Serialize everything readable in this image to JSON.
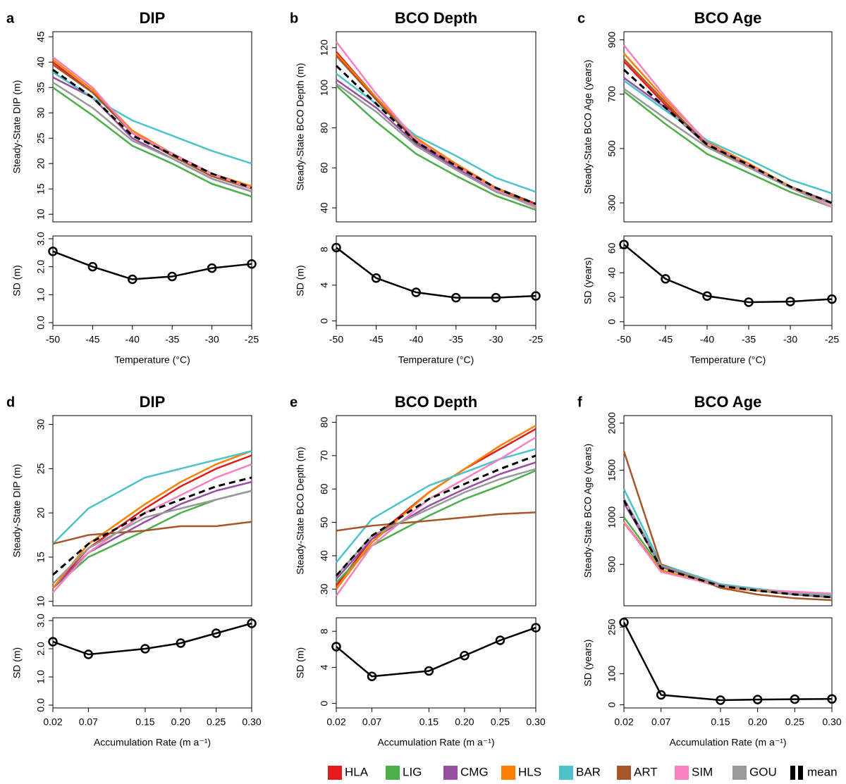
{
  "chart_data": [
    {
      "type": "line",
      "panel": "a",
      "title": "DIP",
      "y_label": "Steady-State DIP (m)",
      "x": [
        -50,
        -45,
        -40,
        -35,
        -30,
        -25
      ],
      "xlim": [
        -50,
        -25
      ],
      "ylim": [
        8.5,
        46
      ],
      "yticks": [
        10,
        15,
        20,
        25,
        30,
        35,
        40,
        45
      ],
      "series": [
        {
          "name": "HLA",
          "color": "#e41a1c",
          "values": [
            40,
            34,
            26,
            22,
            18,
            15.5
          ]
        },
        {
          "name": "LIG",
          "color": "#4daf4a",
          "values": [
            35,
            29.5,
            23.5,
            20,
            16,
            13.5
          ]
        },
        {
          "name": "CMG",
          "color": "#984ea3",
          "values": [
            37,
            33,
            25,
            21,
            17,
            14.5
          ]
        },
        {
          "name": "HLS",
          "color": "#ff7f00",
          "values": [
            40.5,
            34.5,
            26.5,
            22,
            18,
            15.5
          ]
        },
        {
          "name": "BAR",
          "color": "#4cc3c9",
          "values": [
            38,
            33,
            28.5,
            25.5,
            22.5,
            20
          ]
        },
        {
          "name": "ART",
          "color": "#a65628",
          "values": [
            39.5,
            34,
            26,
            21.5,
            17.5,
            15
          ]
        },
        {
          "name": "SIM",
          "color": "#f781bf",
          "values": [
            41,
            35,
            26,
            22,
            18,
            15
          ]
        },
        {
          "name": "GOU",
          "color": "#999999",
          "values": [
            36,
            31,
            24.5,
            21,
            17,
            14.5
          ]
        },
        {
          "name": "mean",
          "color": "#000000",
          "dashed": true,
          "values": [
            38.5,
            33,
            25.5,
            21.8,
            18,
            15.2
          ]
        }
      ]
    },
    {
      "type": "line",
      "y_label": "SD (m)",
      "x_label": "Temperature (°C)",
      "markers": true,
      "x": [
        -50,
        -45,
        -40,
        -35,
        -30,
        -25
      ],
      "xlim": [
        -50,
        -25
      ],
      "xticks": [
        -50,
        -45,
        -40,
        -35,
        -30,
        -25
      ],
      "ylim": [
        -0.1,
        3.1
      ],
      "yticks": [
        {
          "value": 0,
          "label": "0.0"
        },
        {
          "value": 1,
          "label": "1.0"
        },
        {
          "value": 2,
          "label": "2.0"
        },
        {
          "value": 3,
          "label": "3.0"
        }
      ],
      "series": [
        {
          "color": "#000000",
          "values": [
            2.55,
            2.0,
            1.55,
            1.65,
            1.95,
            2.1
          ]
        }
      ]
    },
    {
      "type": "line",
      "panel": "b",
      "title": "BCO Depth",
      "y_label": "Steady-State BCO Depth (m)",
      "x": [
        -50,
        -45,
        -40,
        -35,
        -30,
        -25
      ],
      "xlim": [
        -50,
        -25
      ],
      "ylim": [
        33,
        128
      ],
      "yticks": [
        40,
        60,
        80,
        100,
        120
      ],
      "series": [
        {
          "name": "HLA",
          "color": "#e41a1c",
          "values": [
            118,
            95,
            74,
            62,
            50,
            42
          ]
        },
        {
          "name": "LIG",
          "color": "#4daf4a",
          "values": [
            101,
            83,
            67,
            56,
            46,
            39
          ]
        },
        {
          "name": "CMG",
          "color": "#984ea3",
          "values": [
            104,
            90,
            72,
            60,
            49,
            41
          ]
        },
        {
          "name": "HLS",
          "color": "#ff7f00",
          "values": [
            117,
            95,
            75,
            62,
            50,
            41
          ]
        },
        {
          "name": "BAR",
          "color": "#4cc3c9",
          "values": [
            107,
            92,
            76,
            66,
            55,
            48
          ]
        },
        {
          "name": "ART",
          "color": "#a65628",
          "values": [
            116,
            94,
            73,
            61,
            49,
            41
          ]
        },
        {
          "name": "SIM",
          "color": "#f781bf",
          "values": [
            123,
            97,
            74,
            61,
            49,
            40
          ]
        },
        {
          "name": "GOU",
          "color": "#999999",
          "values": [
            102,
            88,
            71,
            59,
            48,
            41
          ]
        },
        {
          "name": "mean",
          "color": "#000000",
          "dashed": true,
          "values": [
            111,
            92,
            73,
            61,
            50,
            42
          ]
        }
      ]
    },
    {
      "type": "line",
      "y_label": "SD (m)",
      "x_label": "Temperature (°C)",
      "markers": true,
      "x": [
        -50,
        -45,
        -40,
        -35,
        -30,
        -25
      ],
      "xlim": [
        -50,
        -25
      ],
      "xticks": [
        -50,
        -45,
        -40,
        -35,
        -30,
        -25
      ],
      "ylim": [
        -0.5,
        9.5
      ],
      "yticks": [
        0,
        4,
        8
      ],
      "series": [
        {
          "color": "#000000",
          "values": [
            8.2,
            4.8,
            3.2,
            2.6,
            2.6,
            2.8
          ]
        }
      ]
    },
    {
      "type": "line",
      "panel": "c",
      "title": "BCO Age",
      "y_label": "Steady-State BCO Age (years)",
      "x": [
        -50,
        -45,
        -40,
        -35,
        -30,
        -25
      ],
      "xlim": [
        -50,
        -25
      ],
      "ylim": [
        230,
        930
      ],
      "yticks": [
        300,
        500,
        700,
        900
      ],
      "series": [
        {
          "name": "HLA",
          "color": "#e41a1c",
          "values": [
            820,
            660,
            520,
            440,
            360,
            300
          ]
        },
        {
          "name": "LIG",
          "color": "#4daf4a",
          "values": [
            710,
            590,
            480,
            410,
            340,
            285
          ]
        },
        {
          "name": "CMG",
          "color": "#984ea3",
          "values": [
            760,
            650,
            510,
            440,
            360,
            300
          ]
        },
        {
          "name": "HLS",
          "color": "#ff7f00",
          "values": [
            850,
            680,
            525,
            445,
            360,
            295
          ]
        },
        {
          "name": "BAR",
          "color": "#4cc3c9",
          "values": [
            750,
            640,
            530,
            460,
            385,
            335
          ]
        },
        {
          "name": "ART",
          "color": "#a65628",
          "values": [
            830,
            670,
            510,
            435,
            355,
            300
          ]
        },
        {
          "name": "SIM",
          "color": "#f781bf",
          "values": [
            880,
            690,
            520,
            440,
            355,
            285
          ]
        },
        {
          "name": "GOU",
          "color": "#999999",
          "values": [
            720,
            610,
            505,
            430,
            355,
            295
          ]
        },
        {
          "name": "mean",
          "color": "#000000",
          "dashed": true,
          "values": [
            790,
            650,
            515,
            440,
            360,
            300
          ]
        }
      ]
    },
    {
      "type": "line",
      "y_label": "SD (years)",
      "x_label": "Temperature (°C)",
      "markers": true,
      "x": [
        -50,
        -45,
        -40,
        -35,
        -30,
        -25
      ],
      "xlim": [
        -50,
        -25
      ],
      "xticks": [
        -50,
        -45,
        -40,
        -35,
        -30,
        -25
      ],
      "ylim": [
        -3,
        70
      ],
      "yticks": [
        0,
        20,
        40,
        60
      ],
      "series": [
        {
          "color": "#000000",
          "values": [
            63,
            35,
            21,
            16,
            16.5,
            18.5
          ]
        }
      ]
    },
    {
      "type": "line",
      "panel": "d",
      "title": "DIP",
      "y_label": "Steady-State DIP (m)",
      "x": [
        0.02,
        0.07,
        0.15,
        0.2,
        0.25,
        0.3
      ],
      "xlim": [
        0.02,
        0.3
      ],
      "ylim": [
        9.5,
        31
      ],
      "yticks": [
        10,
        15,
        20,
        25,
        30
      ],
      "series": [
        {
          "name": "HLA",
          "color": "#e41a1c",
          "values": [
            11.5,
            16,
            20.5,
            23,
            25,
            26.5
          ]
        },
        {
          "name": "LIG",
          "color": "#4daf4a",
          "values": [
            11.5,
            15,
            18,
            20,
            21.5,
            22.5
          ]
        },
        {
          "name": "CMG",
          "color": "#984ea3",
          "values": [
            11.5,
            15.5,
            19,
            21,
            22.5,
            23.5
          ]
        },
        {
          "name": "HLS",
          "color": "#ff7f00",
          "values": [
            11.5,
            16.5,
            21,
            23.5,
            25.5,
            27
          ]
        },
        {
          "name": "BAR",
          "color": "#4cc3c9",
          "values": [
            16.5,
            20.5,
            24,
            25,
            26,
            27
          ]
        },
        {
          "name": "ART",
          "color": "#a65628",
          "values": [
            16.5,
            17.5,
            18,
            18.5,
            18.5,
            19
          ]
        },
        {
          "name": "SIM",
          "color": "#f781bf",
          "values": [
            11,
            15.5,
            20,
            22,
            24,
            25.5
          ]
        },
        {
          "name": "GOU",
          "color": "#999999",
          "values": [
            12,
            16,
            19.5,
            20.5,
            21.5,
            22.5
          ]
        },
        {
          "name": "mean",
          "color": "#000000",
          "dashed": true,
          "values": [
            13,
            16.5,
            20,
            21.5,
            23,
            24
          ]
        }
      ]
    },
    {
      "type": "line",
      "y_label": "SD (m)",
      "x_label": "Accumulation Rate (m a⁻¹)",
      "markers": true,
      "x": [
        0.02,
        0.07,
        0.15,
        0.2,
        0.25,
        0.3
      ],
      "xlim": [
        0.02,
        0.3
      ],
      "xticks": [
        0.02,
        0.07,
        0.15,
        {
          "value": 0.2,
          "label": "0.20"
        },
        0.25,
        {
          "value": 0.3,
          "label": "0.30"
        }
      ],
      "ylim": [
        -0.1,
        3.1
      ],
      "yticks": [
        {
          "value": 0,
          "label": "0.0"
        },
        {
          "value": 1,
          "label": "1.0"
        },
        {
          "value": 2,
          "label": "2.0"
        },
        {
          "value": 3,
          "label": "3.0"
        }
      ],
      "series": [
        {
          "color": "#000000",
          "values": [
            2.25,
            1.8,
            2.0,
            2.2,
            2.55,
            2.9
          ]
        }
      ]
    },
    {
      "type": "line",
      "panel": "e",
      "title": "BCO Depth",
      "y_label": "Steady-State BCO Depth (m)",
      "x": [
        0.02,
        0.07,
        0.15,
        0.2,
        0.25,
        0.3
      ],
      "xlim": [
        0.02,
        0.3
      ],
      "ylim": [
        25,
        82
      ],
      "yticks": [
        30,
        40,
        50,
        60,
        70,
        80
      ],
      "series": [
        {
          "name": "HLA",
          "color": "#e41a1c",
          "values": [
            31,
            45,
            59,
            66,
            72,
            78
          ]
        },
        {
          "name": "LIG",
          "color": "#4daf4a",
          "values": [
            32,
            43,
            52,
            57,
            61,
            65.5
          ]
        },
        {
          "name": "CMG",
          "color": "#984ea3",
          "values": [
            33,
            45,
            55,
            60,
            64.5,
            68
          ]
        },
        {
          "name": "HLS",
          "color": "#ff7f00",
          "values": [
            30,
            44,
            59,
            66,
            73,
            79
          ]
        },
        {
          "name": "BAR",
          "color": "#4cc3c9",
          "values": [
            38,
            51,
            61,
            65,
            69,
            72
          ]
        },
        {
          "name": "ART",
          "color": "#a65628",
          "values": [
            47.5,
            49,
            50.5,
            51.5,
            52.5,
            53
          ]
        },
        {
          "name": "SIM",
          "color": "#f781bf",
          "values": [
            28,
            43,
            57,
            63,
            69,
            75.5
          ]
        },
        {
          "name": "GOU",
          "color": "#999999",
          "values": [
            34,
            46,
            54,
            59,
            63,
            66
          ]
        },
        {
          "name": "mean",
          "color": "#000000",
          "dashed": true,
          "values": [
            34,
            46,
            57,
            61.5,
            66,
            70
          ]
        }
      ]
    },
    {
      "type": "line",
      "y_label": "SD (m)",
      "x_label": "Accumulation Rate (m a⁻¹)",
      "markers": true,
      "x": [
        0.02,
        0.07,
        0.15,
        0.2,
        0.25,
        0.3
      ],
      "xlim": [
        0.02,
        0.3
      ],
      "xticks": [
        0.02,
        0.07,
        0.15,
        {
          "value": 0.2,
          "label": "0.20"
        },
        0.25,
        {
          "value": 0.3,
          "label": "0.30"
        }
      ],
      "ylim": [
        -0.5,
        9.5
      ],
      "yticks": [
        0,
        4,
        8
      ],
      "series": [
        {
          "color": "#000000",
          "values": [
            6.3,
            3.0,
            3.6,
            5.3,
            7.0,
            8.4
          ]
        }
      ]
    },
    {
      "type": "line",
      "panel": "f",
      "title": "BCO Age",
      "y_label": "Steady-State BCO Age (years)",
      "x": [
        0.02,
        0.07,
        0.15,
        0.2,
        0.25,
        0.3
      ],
      "xlim": [
        0.02,
        0.3
      ],
      "ylim": [
        60,
        2080
      ],
      "yticks": [
        500,
        1000,
        1500,
        2000
      ],
      "series": [
        {
          "name": "HLA",
          "color": "#e41a1c",
          "values": [
            950,
            440,
            260,
            220,
            190,
            170
          ]
        },
        {
          "name": "LIG",
          "color": "#4daf4a",
          "values": [
            1000,
            470,
            270,
            220,
            180,
            150
          ]
        },
        {
          "name": "CMG",
          "color": "#984ea3",
          "values": [
            1150,
            480,
            270,
            220,
            180,
            150
          ]
        },
        {
          "name": "HLS",
          "color": "#ff7f00",
          "values": [
            940,
            440,
            260,
            220,
            190,
            170
          ]
        },
        {
          "name": "BAR",
          "color": "#4cc3c9",
          "values": [
            1300,
            500,
            290,
            240,
            200,
            170
          ]
        },
        {
          "name": "ART",
          "color": "#a65628",
          "values": [
            1700,
            500,
            250,
            180,
            140,
            120
          ]
        },
        {
          "name": "SIM",
          "color": "#f781bf",
          "values": [
            950,
            420,
            270,
            230,
            210,
            190
          ]
        },
        {
          "name": "GOU",
          "color": "#999999",
          "values": [
            1200,
            490,
            280,
            230,
            190,
            160
          ]
        },
        {
          "name": "mean",
          "color": "#000000",
          "dashed": true,
          "values": [
            1180,
            460,
            270,
            220,
            180,
            150
          ]
        }
      ]
    },
    {
      "type": "line",
      "y_label": "SD (years)",
      "x_label": "Accumulation Rate (m a⁻¹)",
      "markers": true,
      "x": [
        0.02,
        0.07,
        0.15,
        0.2,
        0.25,
        0.3
      ],
      "xlim": [
        0.02,
        0.3
      ],
      "xticks": [
        0.02,
        0.07,
        0.15,
        {
          "value": 0.2,
          "label": "0.20"
        },
        0.25,
        {
          "value": 0.3,
          "label": "0.30"
        }
      ],
      "ylim": [
        -10,
        280
      ],
      "yticks": [
        0,
        100,
        250
      ],
      "series": [
        {
          "color": "#000000",
          "values": [
            265,
            32,
            15,
            17,
            18,
            19
          ]
        }
      ]
    }
  ]
}
